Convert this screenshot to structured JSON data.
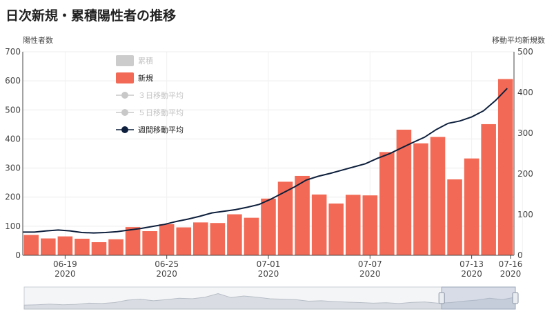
{
  "page": {
    "title": "日次新規・累積陽性者の推移"
  },
  "chart_data": {
    "type": "bar",
    "title": "日次新規・累積陽性者の推移",
    "y_left_label": "陽性者数",
    "y_right_label": "移動平均新規数",
    "ylim_left": [
      0,
      700
    ],
    "ylim_right": [
      0,
      500
    ],
    "y_left_ticks": [
      "0",
      "100",
      "200",
      "300",
      "400",
      "500",
      "600",
      "700"
    ],
    "y_right_ticks": [
      "0",
      "100",
      "200",
      "300",
      "400",
      "500"
    ],
    "x_ticks": [
      {
        "date": "06-19",
        "year": "2020",
        "index": 2
      },
      {
        "date": "06-25",
        "year": "2020",
        "index": 8
      },
      {
        "date": "07-01",
        "year": "2020",
        "index": 14
      },
      {
        "date": "07-07",
        "year": "2020",
        "index": 20
      },
      {
        "date": "07-13",
        "year": "2020",
        "index": 26
      },
      {
        "date": "07-16",
        "year": "2020",
        "index": 29
      }
    ],
    "legend": [
      {
        "label": "累積",
        "kind": "box",
        "color": "#cccccc",
        "active": false
      },
      {
        "label": "新規",
        "kind": "box",
        "color": "#f26a55",
        "active": true
      },
      {
        "label": "３日移動平均",
        "kind": "line",
        "color": "#c8c8c8",
        "active": false
      },
      {
        "label": "５日移動平均",
        "kind": "line",
        "color": "#c8c8c8",
        "active": false
      },
      {
        "label": "週間移動平均",
        "kind": "line",
        "color": "#0d1f3c",
        "active": true
      }
    ],
    "legend_position": "top-left",
    "grid": true,
    "series": [
      {
        "name": "新規",
        "axis": "left",
        "color": "#f26a55",
        "values": [
          70,
          58,
          65,
          57,
          45,
          55,
          97,
          83,
          107,
          96,
          113,
          111,
          141,
          129,
          195,
          253,
          273,
          209,
          178,
          208,
          206,
          355,
          432,
          385,
          407,
          261,
          333,
          451,
          606
        ]
      },
      {
        "name": "週間移動平均",
        "axis": "right",
        "color": "#0d1f3c",
        "values": [
          57,
          57,
          60,
          62,
          60,
          56,
          55,
          56,
          58,
          62,
          66,
          71,
          76,
          83,
          89,
          96,
          104,
          108,
          112,
          118,
          125,
          138,
          153,
          168,
          185,
          194,
          201,
          209,
          217,
          225,
          238,
          249,
          263,
          277,
          290,
          309,
          324,
          330,
          340,
          355,
          380,
          410
        ]
      }
    ],
    "navigator": {
      "selected_range": [
        0.85,
        1.0
      ]
    }
  }
}
